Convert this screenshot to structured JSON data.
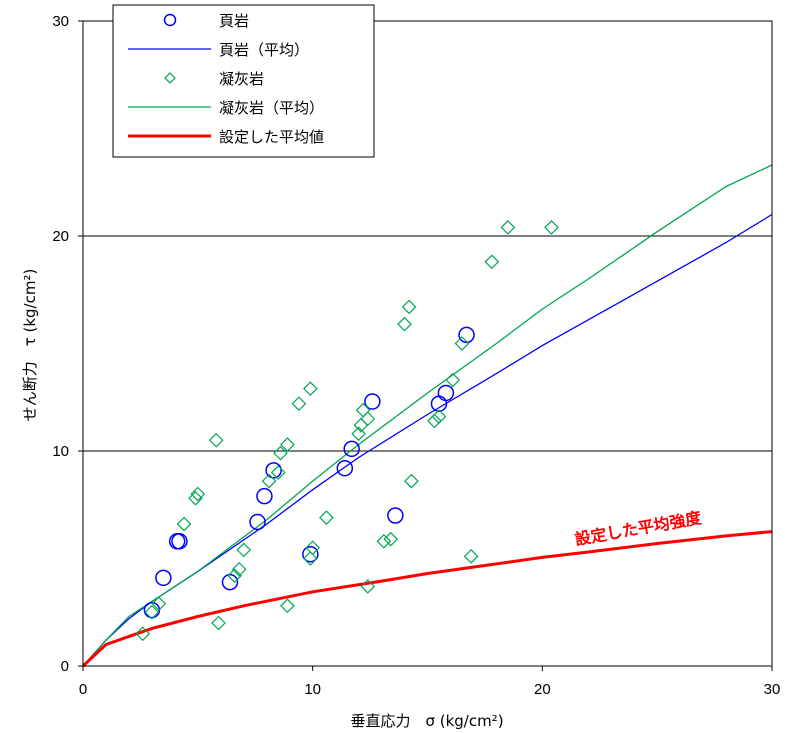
{
  "chart_data": {
    "type": "scatter",
    "title": "",
    "xlabel": "垂直応力　σ (kg/cm²)",
    "ylabel": "せん断力　τ (kg/cm²)",
    "xlim": [
      0,
      30
    ],
    "ylim": [
      0,
      30
    ],
    "x_ticks": [
      "0",
      "10",
      "20",
      "30"
    ],
    "y_ticks": [
      "0",
      "10",
      "20",
      "30"
    ],
    "grid": "horizontal",
    "legend_position": "top-left",
    "annotation": "設定した平均強度",
    "series": [
      {
        "name": "頁岩",
        "kind": "markers",
        "marker": "circle",
        "color": "#0000ff",
        "points": [
          [
            3.0,
            2.6
          ],
          [
            3.5,
            4.1
          ],
          [
            4.1,
            5.8
          ],
          [
            4.2,
            5.8
          ],
          [
            6.4,
            3.9
          ],
          [
            7.6,
            6.7
          ],
          [
            7.9,
            7.9
          ],
          [
            8.3,
            9.1
          ],
          [
            9.9,
            5.2
          ],
          [
            11.4,
            9.2
          ],
          [
            11.7,
            10.1
          ],
          [
            12.6,
            12.3
          ],
          [
            13.6,
            7.0
          ],
          [
            15.5,
            12.2
          ],
          [
            15.8,
            12.7
          ],
          [
            16.7,
            15.4
          ]
        ]
      },
      {
        "name": "頁岩（平均）",
        "kind": "line",
        "color": "#0000ff",
        "points": [
          [
            0,
            0
          ],
          [
            1,
            1.2
          ],
          [
            2,
            2.2
          ],
          [
            3,
            3.0
          ],
          [
            5,
            4.4
          ],
          [
            8,
            6.6
          ],
          [
            10,
            8.2
          ],
          [
            12,
            9.7
          ],
          [
            15,
            11.7
          ],
          [
            18,
            13.6
          ],
          [
            20,
            14.9
          ],
          [
            22,
            16.1
          ],
          [
            25,
            17.9
          ],
          [
            28,
            19.7
          ],
          [
            30,
            21.0
          ]
        ]
      },
      {
        "name": "凝灰岩",
        "kind": "markers",
        "marker": "diamond",
        "color": "#00a651",
        "points": [
          [
            2.6,
            1.5
          ],
          [
            3.0,
            2.5
          ],
          [
            3.3,
            2.9
          ],
          [
            4.4,
            6.6
          ],
          [
            4.9,
            7.8
          ],
          [
            5.0,
            8.0
          ],
          [
            5.8,
            10.5
          ],
          [
            5.9,
            2.0
          ],
          [
            6.6,
            4.2
          ],
          [
            6.8,
            4.5
          ],
          [
            7.0,
            5.4
          ],
          [
            8.1,
            8.6
          ],
          [
            8.5,
            9.0
          ],
          [
            8.6,
            9.9
          ],
          [
            8.9,
            10.3
          ],
          [
            8.9,
            2.8
          ],
          [
            9.4,
            12.2
          ],
          [
            9.9,
            12.9
          ],
          [
            9.9,
            5.0
          ],
          [
            10.0,
            5.5
          ],
          [
            10.6,
            6.9
          ],
          [
            12.0,
            10.8
          ],
          [
            12.1,
            11.2
          ],
          [
            12.2,
            11.9
          ],
          [
            12.4,
            11.5
          ],
          [
            12.4,
            3.7
          ],
          [
            13.1,
            5.8
          ],
          [
            13.4,
            5.9
          ],
          [
            14.0,
            15.9
          ],
          [
            14.2,
            16.7
          ],
          [
            14.3,
            8.6
          ],
          [
            15.3,
            11.4
          ],
          [
            15.5,
            11.6
          ],
          [
            16.1,
            13.3
          ],
          [
            16.5,
            15.0
          ],
          [
            16.9,
            5.1
          ],
          [
            17.8,
            18.8
          ],
          [
            18.5,
            20.4
          ],
          [
            20.4,
            20.4
          ]
        ]
      },
      {
        "name": "凝灰岩（平均）",
        "kind": "line",
        "color": "#00a651",
        "points": [
          [
            0,
            0
          ],
          [
            1,
            1.2
          ],
          [
            2,
            2.3
          ],
          [
            3,
            3.0
          ],
          [
            5,
            4.4
          ],
          [
            8,
            6.8
          ],
          [
            10,
            8.6
          ],
          [
            12,
            10.3
          ],
          [
            15,
            12.7
          ],
          [
            18,
            15.0
          ],
          [
            20,
            16.6
          ],
          [
            22,
            18.0
          ],
          [
            25,
            20.2
          ],
          [
            28,
            22.3
          ],
          [
            30,
            23.3
          ]
        ]
      },
      {
        "name": "設定した平均値",
        "kind": "line",
        "color": "#ff0000",
        "points": [
          [
            0,
            0
          ],
          [
            1,
            1.0
          ],
          [
            3,
            1.75
          ],
          [
            5,
            2.3
          ],
          [
            7,
            2.8
          ],
          [
            10,
            3.45
          ],
          [
            13,
            3.95
          ],
          [
            15,
            4.3
          ],
          [
            18,
            4.75
          ],
          [
            20,
            5.05
          ],
          [
            22,
            5.3
          ],
          [
            25,
            5.7
          ],
          [
            28,
            6.05
          ],
          [
            30,
            6.25
          ]
        ]
      }
    ]
  }
}
